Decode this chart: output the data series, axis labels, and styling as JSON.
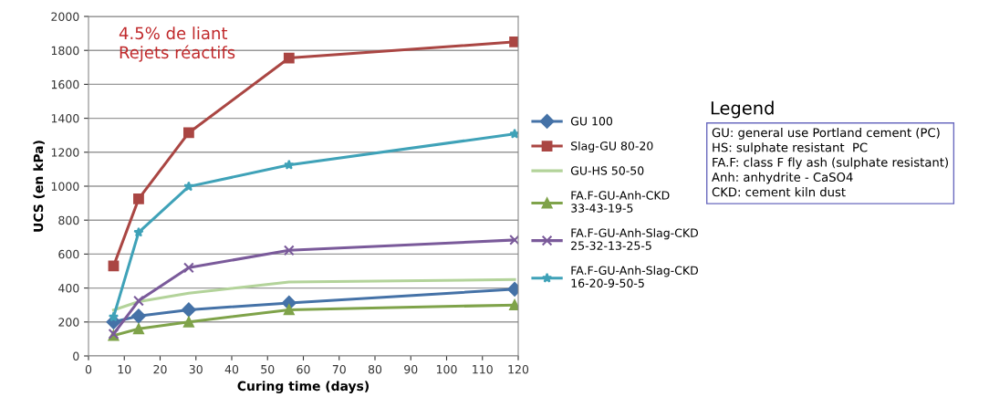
{
  "chart_data": {
    "type": "line",
    "xlabel": "Curing time (days)",
    "ylabel": "UCS (en kPa)",
    "x": [
      7,
      14,
      28,
      56,
      119
    ],
    "series": [
      {
        "name": "GU 100",
        "color": "#4572a7",
        "marker": "diamond",
        "values": [
          200,
          235,
          272,
          312,
          393
        ]
      },
      {
        "name": "Slag-GU 80-20",
        "color": "#aa4643",
        "marker": "square",
        "values": [
          530,
          925,
          1315,
          1755,
          1850
        ]
      },
      {
        "name": "GU-HS 50-50",
        "color": "#b3d39a",
        "marker": "none",
        "values": [
          270,
          320,
          370,
          435,
          450
        ]
      },
      {
        "name": "FA.F-GU-Anh-CKD 33-43-19-5",
        "color": "#7fa34a",
        "marker": "triangle",
        "values": [
          120,
          160,
          200,
          272,
          300
        ]
      },
      {
        "name": "FA.F-GU-Anh-Slag-CKD 25-32-13-25-5",
        "color": "#7a5a9a",
        "marker": "cross",
        "values": [
          130,
          325,
          520,
          622,
          683
        ]
      },
      {
        "name": "FA.F-GU-Anh-Slag-CKD 16-20-9-50-5",
        "color": "#3fa2b8",
        "marker": "star",
        "values": [
          230,
          728,
          998,
          1125,
          1308
        ]
      }
    ],
    "xlim": [
      0,
      120
    ],
    "xticks": [
      0,
      10,
      20,
      30,
      40,
      50,
      60,
      70,
      80,
      90,
      100,
      110,
      120
    ],
    "ylim": [
      0,
      2000
    ],
    "yticks": [
      0,
      200,
      400,
      600,
      800,
      1000,
      1200,
      1400,
      1600,
      1800,
      2000
    ],
    "grid": "y",
    "legend": "right",
    "line_style": "solid",
    "annotations": [
      "4.5% de liant\nRejets réactifs",
      "Legend",
      "GU: general use Portland cement (PC)\nHS: sulphate resistant  PC\nFA.F: class F fly ash (sulphate resistant)\nAnh: anhydrite - CaSO4\nCKD: cement kiln dust"
    ]
  }
}
